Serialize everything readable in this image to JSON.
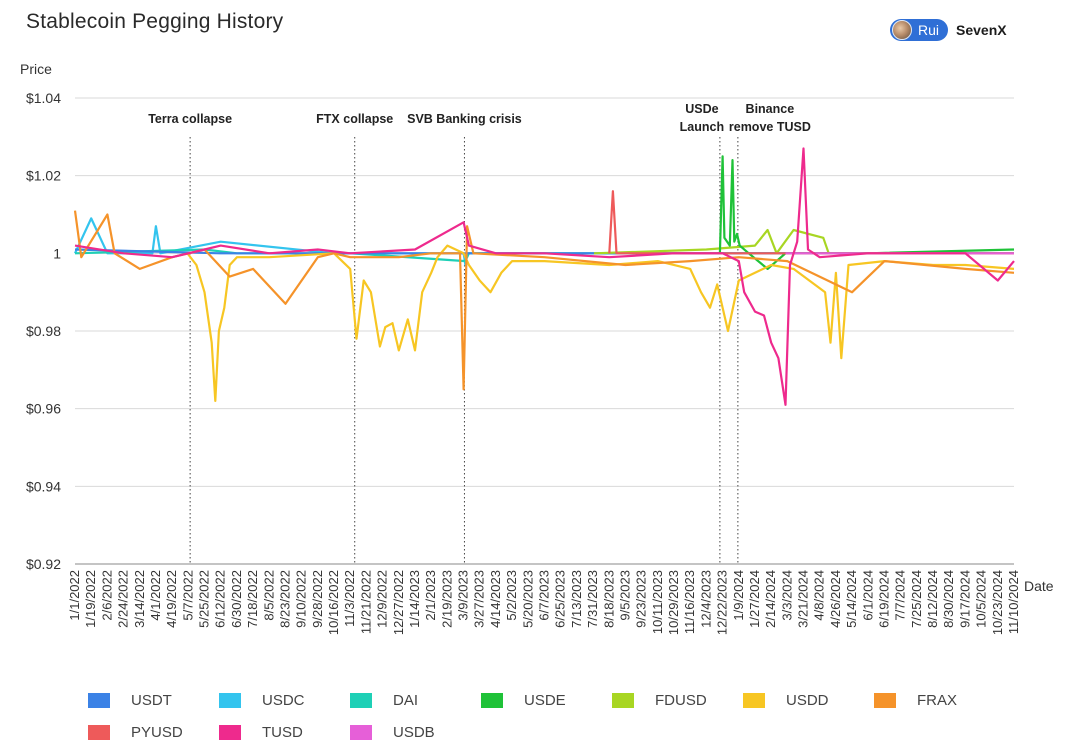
{
  "header": {
    "title": "Stablecoin Pegging History",
    "brand_name": "Rui",
    "brand_org": "SevenX"
  },
  "chart_data": {
    "type": "line",
    "title": "Stablecoin Pegging History",
    "xlabel": "Date",
    "ylabel": "Price",
    "ylim": [
      0.92,
      1.04
    ],
    "yticks": [
      "$0.92",
      "$0.94",
      "$0.96",
      "$0.98",
      "1",
      "$1.02",
      "$1.04"
    ],
    "ytick_values": [
      0.92,
      0.94,
      0.96,
      0.98,
      1.0,
      1.02,
      1.04
    ],
    "grid": "horizontal",
    "legend_position": "bottom",
    "x_range": [
      "2022-01-01",
      "2024-11-10"
    ],
    "x_tick_labels": [
      "1/1/2022",
      "1/19/2022",
      "2/6/2022",
      "2/24/2022",
      "3/14/2022",
      "4/1/2022",
      "4/19/2022",
      "5/7/2022",
      "5/25/2022",
      "6/12/2022",
      "6/30/2022",
      "7/18/2022",
      "8/5/2022",
      "8/23/2022",
      "9/10/2022",
      "9/28/2022",
      "10/16/2022",
      "11/3/2022",
      "11/21/2022",
      "12/9/2022",
      "12/27/2022",
      "1/14/2023",
      "2/1/2023",
      "2/19/2023",
      "3/9/2023",
      "3/27/2023",
      "4/14/2023",
      "5/2/2023",
      "5/20/2023",
      "6/7/2023",
      "6/25/2023",
      "7/13/2023",
      "7/31/2023",
      "8/18/2023",
      "9/5/2023",
      "9/23/2023",
      "10/11/2023",
      "10/29/2023",
      "11/16/2023",
      "12/4/2023",
      "12/22/2023",
      "1/9/2024",
      "1/27/2024",
      "2/14/2024",
      "3/3/2024",
      "3/21/2024",
      "4/8/2024",
      "4/26/2024",
      "5/14/2024",
      "6/1/2024",
      "6/19/2024",
      "7/7/2024",
      "7/25/2024",
      "8/12/2024",
      "8/30/2024",
      "9/17/2024",
      "10/5/2024",
      "10/23/2024",
      "11/10/2024"
    ],
    "annotations": [
      {
        "date": "2022-05-09",
        "label": [
          "Terra collapse"
        ]
      },
      {
        "date": "2022-11-08",
        "label": [
          "FTX collapse"
        ]
      },
      {
        "date": "2023-03-10",
        "label": [
          "SVB Banking crisis"
        ]
      },
      {
        "date": "2023-12-19",
        "label": [
          "USDe",
          "Launch"
        ]
      },
      {
        "date": "2024-01-08",
        "label": [
          "Binance",
          "remove TUSD"
        ]
      }
    ],
    "series": [
      {
        "name": "USDT",
        "color": "#3b82e6",
        "points": [
          [
            "2022-01-01",
            1.001
          ],
          [
            "2022-06-12",
            1.0
          ],
          [
            "2023-01-14",
            1.0
          ],
          [
            "2023-06-07",
            1.0
          ],
          [
            "2024-01-09",
            1.0
          ],
          [
            "2024-06-01",
            1.0
          ],
          [
            "2024-11-10",
            1.0
          ]
        ]
      },
      {
        "name": "USDC",
        "color": "#33c4ee",
        "points": [
          [
            "2022-01-01",
            1.0
          ],
          [
            "2022-01-19",
            1.009
          ],
          [
            "2022-02-06",
            1.0
          ],
          [
            "2022-03-28",
            1.0
          ],
          [
            "2022-04-01",
            1.007
          ],
          [
            "2022-04-06",
            1.0
          ],
          [
            "2022-06-12",
            1.003
          ],
          [
            "2022-10-16",
            1.0
          ],
          [
            "2023-03-09",
            1.0
          ],
          [
            "2023-03-11",
            0.997
          ],
          [
            "2023-03-13",
            1.0
          ],
          [
            "2023-06-07",
            1.0
          ],
          [
            "2024-01-09",
            1.0
          ],
          [
            "2024-11-10",
            1.0
          ]
        ]
      },
      {
        "name": "DAI",
        "color": "#1ed0b6",
        "points": [
          [
            "2022-01-01",
            1.0
          ],
          [
            "2022-05-25",
            1.001
          ],
          [
            "2022-06-30",
            1.0
          ],
          [
            "2022-11-03",
            1.0
          ],
          [
            "2023-03-11",
            0.998
          ],
          [
            "2023-03-15",
            1.0
          ],
          [
            "2023-06-25",
            1.0
          ],
          [
            "2024-01-09",
            1.0
          ],
          [
            "2024-11-10",
            1.0
          ]
        ]
      },
      {
        "name": "USDE",
        "color": "#1fc238",
        "points": [
          [
            "2023-12-19",
            1.0
          ],
          [
            "2023-12-22",
            1.025
          ],
          [
            "2023-12-24",
            1.004
          ],
          [
            "2023-12-30",
            1.002
          ],
          [
            "2024-01-02",
            1.024
          ],
          [
            "2024-01-04",
            1.003
          ],
          [
            "2024-01-07",
            1.005
          ],
          [
            "2024-01-10",
            1.002
          ],
          [
            "2024-01-20",
            1.0
          ],
          [
            "2024-02-10",
            0.996
          ],
          [
            "2024-03-01",
            1.0
          ],
          [
            "2024-06-01",
            1.0
          ],
          [
            "2024-11-10",
            1.001
          ]
        ]
      },
      {
        "name": "FDUSD",
        "color": "#a8d623",
        "points": [
          [
            "2023-08-01",
            1.0
          ],
          [
            "2023-12-04",
            1.001
          ],
          [
            "2024-01-27",
            1.002
          ],
          [
            "2024-02-10",
            1.006
          ],
          [
            "2024-02-20",
            1.0
          ],
          [
            "2024-03-10",
            1.006
          ],
          [
            "2024-04-12",
            1.004
          ],
          [
            "2024-04-18",
            1.0
          ],
          [
            "2024-06-01",
            1.0
          ],
          [
            "2024-11-10",
            1.0
          ]
        ]
      },
      {
        "name": "USDD",
        "color": "#f7c623",
        "points": [
          [
            "2022-05-06",
            1.0
          ],
          [
            "2022-05-16",
            0.997
          ],
          [
            "2022-05-25",
            0.99
          ],
          [
            "2022-06-02",
            0.977
          ],
          [
            "2022-06-06",
            0.962
          ],
          [
            "2022-06-10",
            0.98
          ],
          [
            "2022-06-16",
            0.986
          ],
          [
            "2022-06-22",
            0.997
          ],
          [
            "2022-06-30",
            0.999
          ],
          [
            "2022-08-05",
            0.999
          ],
          [
            "2022-10-16",
            1.0
          ],
          [
            "2022-11-03",
            0.996
          ],
          [
            "2022-11-10",
            0.978
          ],
          [
            "2022-11-18",
            0.993
          ],
          [
            "2022-11-26",
            0.99
          ],
          [
            "2022-12-06",
            0.976
          ],
          [
            "2022-12-12",
            0.981
          ],
          [
            "2022-12-20",
            0.982
          ],
          [
            "2022-12-27",
            0.975
          ],
          [
            "2023-01-06",
            0.983
          ],
          [
            "2023-01-14",
            0.975
          ],
          [
            "2023-01-22",
            0.99
          ],
          [
            "2023-02-01",
            0.995
          ],
          [
            "2023-02-08",
            0.999
          ],
          [
            "2023-02-19",
            1.002
          ],
          [
            "2023-03-09",
            1.0
          ],
          [
            "2023-03-15",
            0.997
          ],
          [
            "2023-03-27",
            0.993
          ],
          [
            "2023-04-08",
            0.99
          ],
          [
            "2023-04-20",
            0.995
          ],
          [
            "2023-05-02",
            0.998
          ],
          [
            "2023-06-07",
            0.998
          ],
          [
            "2023-08-18",
            0.997
          ],
          [
            "2023-10-11",
            0.998
          ],
          [
            "2023-11-16",
            0.996
          ],
          [
            "2023-11-28",
            0.99
          ],
          [
            "2023-12-08",
            0.986
          ],
          [
            "2023-12-16",
            0.992
          ],
          [
            "2023-12-28",
            0.98
          ],
          [
            "2024-01-09",
            0.993
          ],
          [
            "2024-01-27",
            0.995
          ],
          [
            "2024-02-14",
            0.997
          ],
          [
            "2024-03-10",
            0.996
          ],
          [
            "2024-04-14",
            0.99
          ],
          [
            "2024-04-20",
            0.977
          ],
          [
            "2024-04-26",
            0.995
          ],
          [
            "2024-05-02",
            0.973
          ],
          [
            "2024-05-10",
            0.997
          ],
          [
            "2024-06-19",
            0.998
          ],
          [
            "2024-08-12",
            0.997
          ],
          [
            "2024-09-17",
            0.997
          ],
          [
            "2024-11-10",
            0.996
          ]
        ]
      },
      {
        "name": "FRAX",
        "color": "#f5932a",
        "points": [
          [
            "2022-01-01",
            1.011
          ],
          [
            "2022-01-08",
            0.999
          ],
          [
            "2022-02-06",
            1.01
          ],
          [
            "2022-02-14",
            1.0
          ],
          [
            "2022-03-14",
            0.996
          ],
          [
            "2022-04-19",
            0.999
          ],
          [
            "2022-05-25",
            1.001
          ],
          [
            "2022-06-22",
            0.994
          ],
          [
            "2022-07-18",
            0.996
          ],
          [
            "2022-08-23",
            0.987
          ],
          [
            "2022-09-28",
            0.999
          ],
          [
            "2022-10-16",
            1.0
          ],
          [
            "2022-11-03",
            0.999
          ],
          [
            "2022-12-27",
            0.999
          ],
          [
            "2023-02-01",
            1.0
          ],
          [
            "2023-03-05",
            1.0
          ],
          [
            "2023-03-09",
            0.965
          ],
          [
            "2023-03-13",
            1.007
          ],
          [
            "2023-03-20",
            1.0
          ],
          [
            "2023-06-07",
            0.999
          ],
          [
            "2023-09-05",
            0.997
          ],
          [
            "2023-11-16",
            0.998
          ],
          [
            "2024-01-09",
            0.999
          ],
          [
            "2024-03-03",
            0.998
          ],
          [
            "2024-05-14",
            0.99
          ],
          [
            "2024-06-19",
            0.998
          ],
          [
            "2024-09-17",
            0.996
          ],
          [
            "2024-11-10",
            0.995
          ]
        ]
      },
      {
        "name": "PYUSD",
        "color": "#ee5a5a",
        "points": [
          [
            "2023-08-18",
            1.0
          ],
          [
            "2023-08-22",
            1.016
          ],
          [
            "2023-08-26",
            1.0
          ],
          [
            "2023-09-23",
            1.0
          ],
          [
            "2023-12-22",
            1.0
          ],
          [
            "2024-06-01",
            1.0
          ],
          [
            "2024-11-10",
            1.0
          ]
        ]
      },
      {
        "name": "TUSD",
        "color": "#ee2a8d",
        "points": [
          [
            "2022-01-01",
            1.002
          ],
          [
            "2022-02-24",
            1.0
          ],
          [
            "2022-04-19",
            0.999
          ],
          [
            "2022-05-25",
            1.001
          ],
          [
            "2022-06-12",
            1.002
          ],
          [
            "2022-08-05",
            1.0
          ],
          [
            "2022-09-28",
            1.001
          ],
          [
            "2022-11-03",
            1.0
          ],
          [
            "2023-01-14",
            1.001
          ],
          [
            "2023-03-09",
            1.008
          ],
          [
            "2023-03-15",
            1.002
          ],
          [
            "2023-04-14",
            1.0
          ],
          [
            "2023-06-07",
            1.0
          ],
          [
            "2023-08-18",
            0.999
          ],
          [
            "2023-10-29",
            1.0
          ],
          [
            "2023-12-22",
            1.0
          ],
          [
            "2024-01-09",
            0.998
          ],
          [
            "2024-01-15",
            0.99
          ],
          [
            "2024-01-27",
            0.985
          ],
          [
            "2024-02-06",
            0.984
          ],
          [
            "2024-02-14",
            0.977
          ],
          [
            "2024-02-22",
            0.973
          ],
          [
            "2024-03-01",
            0.961
          ],
          [
            "2024-03-06",
            0.997
          ],
          [
            "2024-03-14",
            1.003
          ],
          [
            "2024-03-21",
            1.027
          ],
          [
            "2024-03-26",
            1.001
          ],
          [
            "2024-04-08",
            0.999
          ],
          [
            "2024-06-01",
            1.0
          ],
          [
            "2024-09-17",
            1.0
          ],
          [
            "2024-10-23",
            0.993
          ],
          [
            "2024-11-10",
            0.998
          ]
        ]
      },
      {
        "name": "USDB",
        "color": "#e65fd8",
        "points": [
          [
            "2024-03-01",
            1.0
          ],
          [
            "2024-06-01",
            1.0
          ],
          [
            "2024-11-10",
            1.0
          ]
        ]
      }
    ]
  }
}
